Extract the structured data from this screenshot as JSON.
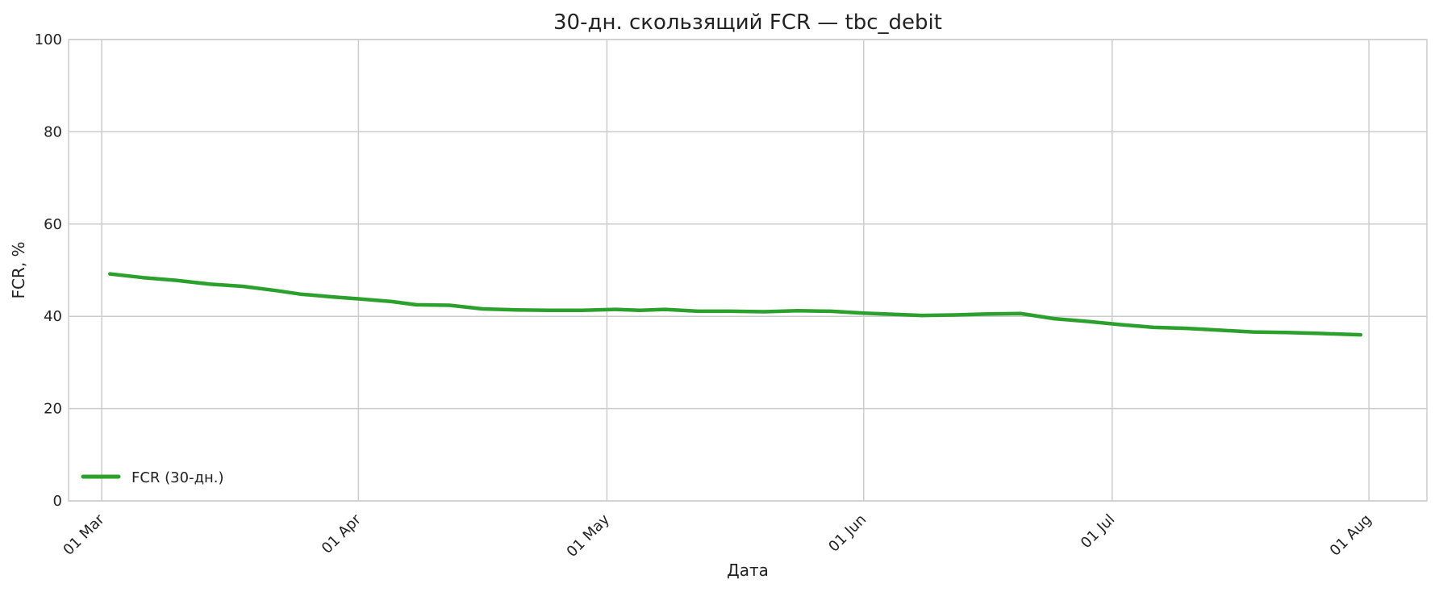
{
  "chart_data": {
    "type": "line",
    "title": "30-дн. скользящий FCR — tbc_debit",
    "xlabel": "Дата",
    "ylabel": "FCR, %",
    "ylim": [
      0,
      100
    ],
    "xlim": [
      "2025-02-25",
      "2025-08-08"
    ],
    "yticks": [
      0,
      20,
      40,
      60,
      80,
      100
    ],
    "xticks": [
      {
        "date": "2025-03-01",
        "label": "01 Mar"
      },
      {
        "date": "2025-04-01",
        "label": "01 Apr"
      },
      {
        "date": "2025-05-01",
        "label": "01 May"
      },
      {
        "date": "2025-06-01",
        "label": "01 Jun"
      },
      {
        "date": "2025-07-01",
        "label": "01 Jul"
      },
      {
        "date": "2025-08-01",
        "label": "01 Aug"
      }
    ],
    "grid": true,
    "legend_position": "lower-left",
    "series": [
      {
        "name": "FCR (30-дн.)",
        "color": "#2ca02c",
        "points": [
          [
            "2025-03-02",
            49.2
          ],
          [
            "2025-03-06",
            48.4
          ],
          [
            "2025-03-10",
            47.8
          ],
          [
            "2025-03-14",
            47.0
          ],
          [
            "2025-03-18",
            46.5
          ],
          [
            "2025-03-22",
            45.6
          ],
          [
            "2025-03-25",
            44.8
          ],
          [
            "2025-03-29",
            44.2
          ],
          [
            "2025-04-01",
            43.8
          ],
          [
            "2025-04-05",
            43.2
          ],
          [
            "2025-04-08",
            42.5
          ],
          [
            "2025-04-12",
            42.4
          ],
          [
            "2025-04-16",
            41.6
          ],
          [
            "2025-04-20",
            41.4
          ],
          [
            "2025-04-24",
            41.3
          ],
          [
            "2025-04-28",
            41.3
          ],
          [
            "2025-05-02",
            41.5
          ],
          [
            "2025-05-05",
            41.3
          ],
          [
            "2025-05-08",
            41.5
          ],
          [
            "2025-05-12",
            41.1
          ],
          [
            "2025-05-16",
            41.1
          ],
          [
            "2025-05-20",
            41.0
          ],
          [
            "2025-05-24",
            41.2
          ],
          [
            "2025-05-28",
            41.1
          ],
          [
            "2025-06-01",
            40.7
          ],
          [
            "2025-06-05",
            40.4
          ],
          [
            "2025-06-08",
            40.2
          ],
          [
            "2025-06-12",
            40.3
          ],
          [
            "2025-06-16",
            40.5
          ],
          [
            "2025-06-20",
            40.6
          ],
          [
            "2025-06-24",
            39.5
          ],
          [
            "2025-06-28",
            38.9
          ],
          [
            "2025-07-02",
            38.2
          ],
          [
            "2025-07-06",
            37.6
          ],
          [
            "2025-07-10",
            37.4
          ],
          [
            "2025-07-14",
            37.0
          ],
          [
            "2025-07-18",
            36.6
          ],
          [
            "2025-07-22",
            36.5
          ],
          [
            "2025-07-26",
            36.3
          ],
          [
            "2025-07-31",
            36.0
          ]
        ]
      }
    ]
  }
}
